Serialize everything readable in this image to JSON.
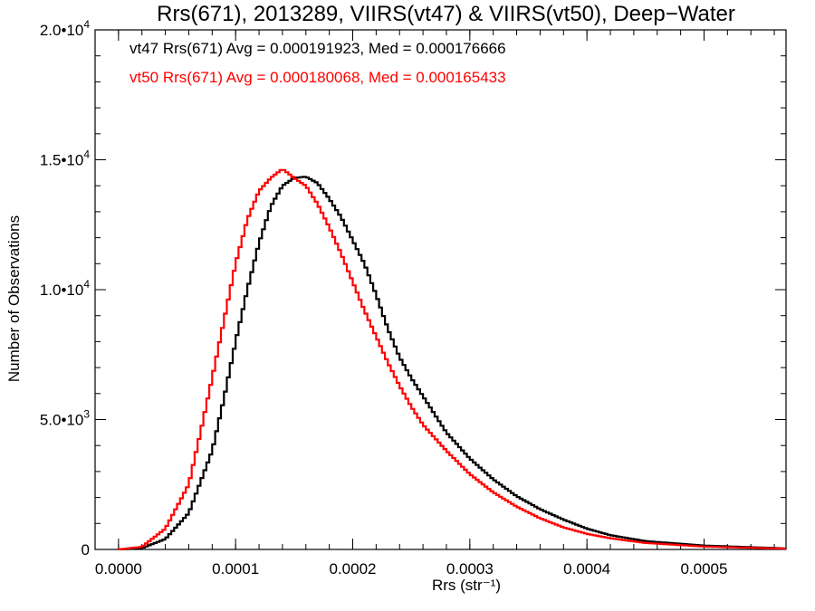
{
  "chart_data": {
    "type": "line",
    "title": "Rrs(671), 2013289, VIIRS(vt47) & VIIRS(vt50), Deep−Water",
    "xlabel": "Rrs (str⁻¹)",
    "ylabel": "Number of Observations",
    "xlim": [
      -2e-05,
      0.00057
    ],
    "ylim": [
      0,
      20000
    ],
    "x_ticks": [
      0.0,
      0.0001,
      0.0002,
      0.0003,
      0.0004,
      0.0005
    ],
    "x_tick_labels": [
      "0.0000",
      "0.0001",
      "0.0002",
      "0.0003",
      "0.0004",
      "0.0005"
    ],
    "y_ticks": [
      0,
      5000,
      10000,
      15000,
      20000
    ],
    "y_tick_labels": [
      {
        "mant": "0",
        "exp": ""
      },
      {
        "mant": "5.0•10",
        "exp": "3"
      },
      {
        "mant": "1.0•10",
        "exp": "4"
      },
      {
        "mant": "1.5•10",
        "exp": "4"
      },
      {
        "mant": "2.0•10",
        "exp": "4"
      }
    ],
    "grid": false,
    "legend_position": "top-left",
    "series": [
      {
        "name": "vt47",
        "color": "#000000",
        "label": "vt47 Rrs(671) Avg = 0.000191923, Med = 0.000176666",
        "x": [
          0.0,
          2e-05,
          4e-05,
          6e-05,
          8e-05,
          9e-05,
          0.0001,
          0.00011,
          0.00012,
          0.00013,
          0.00014,
          0.00015,
          0.00016,
          0.00017,
          0.00018,
          0.00019,
          0.0002,
          0.00021,
          0.00022,
          0.00023,
          0.00024,
          0.00025,
          0.00026,
          0.00028,
          0.0003,
          0.00032,
          0.00034,
          0.00036,
          0.00038,
          0.0004,
          0.00042,
          0.00045,
          0.0005,
          0.00057
        ],
        "y": [
          0,
          50,
          400,
          1400,
          3800,
          5800,
          8000,
          10000,
          11800,
          13200,
          14000,
          14300,
          14350,
          14100,
          13500,
          12800,
          11900,
          11000,
          9800,
          8500,
          7400,
          6600,
          5900,
          4500,
          3500,
          2700,
          2050,
          1550,
          1150,
          800,
          550,
          320,
          150,
          40
        ]
      },
      {
        "name": "vt50",
        "color": "#ff0000",
        "label": "vt50 Rrs(671) Avg = 0.000180068, Med = 0.000165433",
        "x": [
          0.0,
          2e-05,
          4e-05,
          6e-05,
          7e-05,
          8e-05,
          9e-05,
          0.0001,
          0.00011,
          0.00012,
          0.00013,
          0.00014,
          0.00015,
          0.00016,
          0.00017,
          0.00018,
          0.00019,
          0.0002,
          0.00021,
          0.00022,
          0.00023,
          0.00024,
          0.00025,
          0.00026,
          0.00028,
          0.0003,
          0.00032,
          0.00034,
          0.00036,
          0.00038,
          0.0004,
          0.00042,
          0.00045,
          0.0005,
          0.00057
        ],
        "y": [
          0,
          100,
          800,
          2500,
          4500,
          6600,
          8800,
          11000,
          12700,
          13800,
          14300,
          14650,
          14300,
          14000,
          13300,
          12400,
          11400,
          10300,
          9200,
          8200,
          7200,
          6300,
          5500,
          4800,
          3800,
          2900,
          2200,
          1650,
          1200,
          850,
          600,
          430,
          250,
          110,
          30
        ]
      }
    ]
  }
}
